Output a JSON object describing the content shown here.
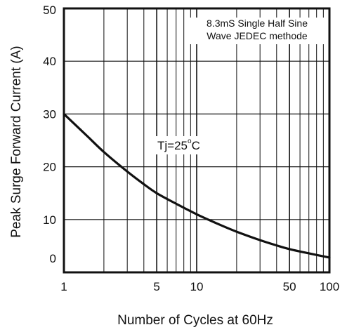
{
  "chart_data": {
    "type": "line",
    "title": "",
    "xlabel": "Number of Cycles at 60Hz",
    "ylabel": "Peak Surge Forward Current (A)",
    "x_scale": "log",
    "xlim": [
      1,
      100
    ],
    "ylim": [
      0,
      50
    ],
    "grid": true,
    "x_ticks": [
      1,
      5,
      10,
      50,
      100
    ],
    "x_tick_labels": [
      "1",
      "5",
      "10",
      "50",
      "100"
    ],
    "y_ticks": [
      0,
      10,
      20,
      30,
      40,
      50
    ],
    "y_tick_labels": [
      "0",
      "10",
      "20",
      "30",
      "40",
      "50"
    ],
    "annotations": [
      {
        "id": "test-condition",
        "lines": [
          "8.3mS Single Half Sine",
          "Wave JEDEC methode"
        ],
        "position": "top-right"
      }
    ],
    "curve_label": {
      "main": "Tj=25",
      "sup": "o",
      "unit": "C"
    },
    "series": [
      {
        "x": [
          1,
          1.5,
          2,
          3,
          4,
          5,
          7,
          10,
          15,
          20,
          30,
          40,
          50,
          70,
          100
        ],
        "y": [
          30,
          25.8,
          22.8,
          19.1,
          16.7,
          15,
          13,
          11,
          9,
          7.7,
          6.1,
          5.1,
          4.4,
          3.6,
          2.8
        ]
      }
    ],
    "colors": {
      "line": "#111111",
      "grid": "#111111",
      "frame": "#111111",
      "background": "#ffffff"
    }
  }
}
